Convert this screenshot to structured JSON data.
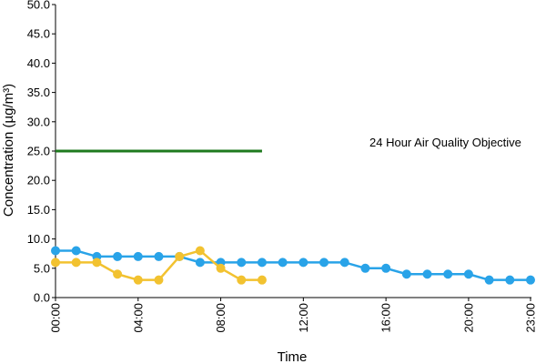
{
  "chart_data": {
    "type": "line",
    "xlabel": "Time",
    "ylabel": "Concentration (µg/m³)",
    "ylim": [
      0,
      50
    ],
    "yticks": [
      "0.0",
      "5.0",
      "10.0",
      "15.0",
      "20.0",
      "25.0",
      "30.0",
      "35.0",
      "40.0",
      "45.0",
      "50.0"
    ],
    "xlim": [
      0,
      23
    ],
    "xticks": [
      {
        "x": 0,
        "label": "00:00"
      },
      {
        "x": 4,
        "label": "04:00"
      },
      {
        "x": 8,
        "label": "08:00"
      },
      {
        "x": 12,
        "label": "12:00"
      },
      {
        "x": 16,
        "label": "16:00"
      },
      {
        "x": 20,
        "label": "20:00"
      },
      {
        "x": 23,
        "label": "23:00"
      }
    ],
    "grid": false,
    "series": [
      {
        "color": "#29A3E8",
        "x": [
          0,
          1,
          2,
          3,
          4,
          5,
          6,
          7,
          8,
          9,
          10,
          11,
          12,
          13,
          14,
          15,
          16,
          17,
          18,
          19,
          20,
          21,
          22,
          23
        ],
        "values": [
          8,
          8,
          7,
          7,
          7,
          7,
          7,
          6,
          6,
          6,
          6,
          6,
          6,
          6,
          6,
          5,
          5,
          4,
          4,
          4,
          4,
          3,
          3,
          3
        ]
      },
      {
        "color": "#F2C230",
        "x": [
          0,
          1,
          2,
          3,
          4,
          5,
          6,
          7,
          8,
          9,
          10
        ],
        "values": [
          6,
          6,
          6,
          4,
          3,
          3,
          7,
          8,
          5,
          3,
          3
        ]
      }
    ],
    "objective": {
      "label": "24 Hour Air Quality Objective",
      "value": 25,
      "x_start": 0,
      "x_end": 10,
      "color": "#1E7A1E"
    }
  }
}
